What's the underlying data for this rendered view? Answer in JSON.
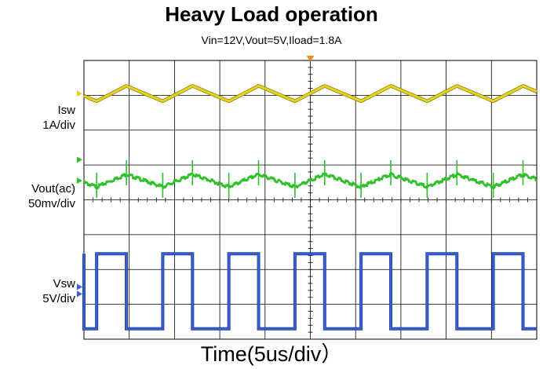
{
  "chart_data": {
    "type": "line",
    "title": "Heavy Load operation",
    "subtitle": "Vin=12V,Vout=5V,Iload=1.8A",
    "xlabel": "Time(5us/div）",
    "grid": true,
    "divisions": {
      "x": 10,
      "y": 8
    },
    "xlim": [
      0,
      50
    ],
    "x_unit": "us",
    "switching_period_us": 7.3,
    "duty_cycle": 0.45,
    "first_rise_us": 1.4,
    "series": [
      {
        "name": "Isw",
        "label_lines": [
          "Isw",
          "1A/div"
        ],
        "color": "#e6d31e",
        "shape": "triangle",
        "center_div": 7.05,
        "amplitude_div": 0.22
      },
      {
        "name": "Vout(ac)",
        "label_lines": [
          "Vout(ac)",
          "50mv/div"
        ],
        "color": "#2fc02a",
        "shape": "triangle_with_spikes",
        "center_div": 4.55,
        "amplitude_div": 0.18
      },
      {
        "name": "Vsw",
        "label_lines": [
          "Vsw",
          "5V/div"
        ],
        "color": "#3a5fd0",
        "shape": "square",
        "high_div": 2.45,
        "low_div": 0.3
      }
    ]
  }
}
